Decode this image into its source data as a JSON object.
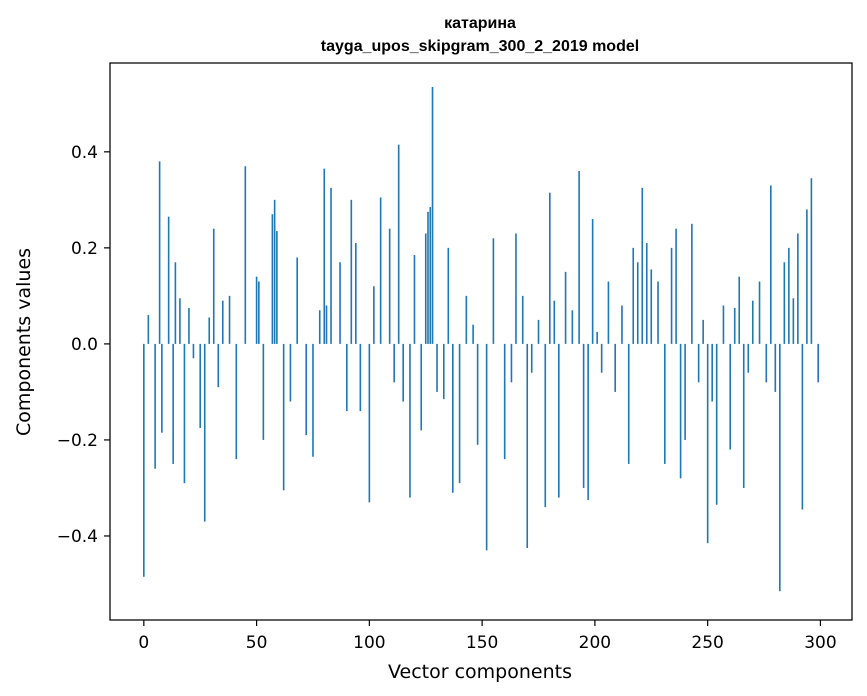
{
  "chart_data": {
    "type": "bar",
    "title_line1": "катарина",
    "title_line2": "tayga_upos_skipgram_300_2_2019 model",
    "xlabel": "Vector components",
    "ylabel": "Components values",
    "x_ticks": [
      "0",
      "50",
      "100",
      "150",
      "200",
      "250",
      "300"
    ],
    "y_ticks": [
      "−0.4",
      "−0.2",
      "0.0",
      "0.2",
      "0.4"
    ],
    "xlim": [
      -15,
      314
    ],
    "ylim": [
      -0.575,
      0.585
    ],
    "bar_color": "#1f77b4",
    "x": [
      0,
      2,
      5,
      7,
      8,
      11,
      13,
      14,
      16,
      18,
      20,
      22,
      25,
      27,
      29,
      31,
      33,
      35,
      38,
      41,
      45,
      50,
      51,
      53,
      57,
      58,
      59,
      62,
      65,
      68,
      72,
      75,
      78,
      80,
      81,
      83,
      87,
      90,
      92,
      94,
      96,
      100,
      102,
      105,
      109,
      111,
      113,
      115,
      118,
      120,
      123,
      125,
      126,
      127,
      128,
      130,
      133,
      135,
      137,
      140,
      143,
      146,
      148,
      152,
      155,
      160,
      163,
      165,
      168,
      170,
      172,
      175,
      178,
      180,
      182,
      184,
      187,
      190,
      193,
      195,
      197,
      199,
      201,
      203,
      206,
      209,
      212,
      215,
      217,
      219,
      221,
      223,
      225,
      228,
      231,
      234,
      236,
      238,
      240,
      243,
      246,
      248,
      250,
      252,
      254,
      257,
      260,
      262,
      264,
      266,
      268,
      270,
      273,
      276,
      278,
      280,
      282,
      284,
      286,
      288,
      290,
      292,
      294,
      296,
      299
    ],
    "values": [
      -0.485,
      0.06,
      -0.26,
      0.38,
      -0.185,
      0.265,
      -0.25,
      0.17,
      0.095,
      -0.29,
      0.075,
      -0.03,
      -0.175,
      -0.37,
      0.055,
      0.24,
      -0.09,
      0.09,
      0.1,
      -0.24,
      0.37,
      0.14,
      0.13,
      -0.2,
      0.27,
      0.3,
      0.235,
      -0.305,
      -0.12,
      0.18,
      -0.19,
      -0.235,
      0.07,
      0.365,
      0.08,
      0.325,
      0.17,
      -0.14,
      0.3,
      0.21,
      -0.14,
      -0.33,
      0.12,
      0.305,
      0.24,
      -0.08,
      0.415,
      -0.12,
      -0.32,
      0.185,
      -0.18,
      0.23,
      0.275,
      0.285,
      0.535,
      -0.1,
      -0.115,
      0.2,
      -0.31,
      -0.29,
      0.1,
      0.04,
      -0.21,
      -0.43,
      0.22,
      -0.24,
      -0.08,
      0.23,
      0.1,
      -0.425,
      -0.06,
      0.05,
      -0.34,
      0.315,
      0.09,
      -0.32,
      0.15,
      0.07,
      0.36,
      -0.3,
      -0.325,
      0.26,
      0.025,
      -0.06,
      0.13,
      -0.1,
      0.08,
      -0.25,
      0.2,
      0.17,
      0.325,
      0.21,
      0.155,
      0.13,
      -0.25,
      0.2,
      0.24,
      -0.28,
      -0.2,
      0.25,
      -0.08,
      0.05,
      -0.415,
      -0.12,
      -0.335,
      0.08,
      -0.22,
      0.075,
      0.14,
      -0.3,
      -0.06,
      0.09,
      0.13,
      -0.08,
      0.33,
      -0.1,
      -0.515,
      0.17,
      0.2,
      0.095,
      0.23,
      -0.345,
      0.28,
      0.345,
      -0.08
    ]
  }
}
